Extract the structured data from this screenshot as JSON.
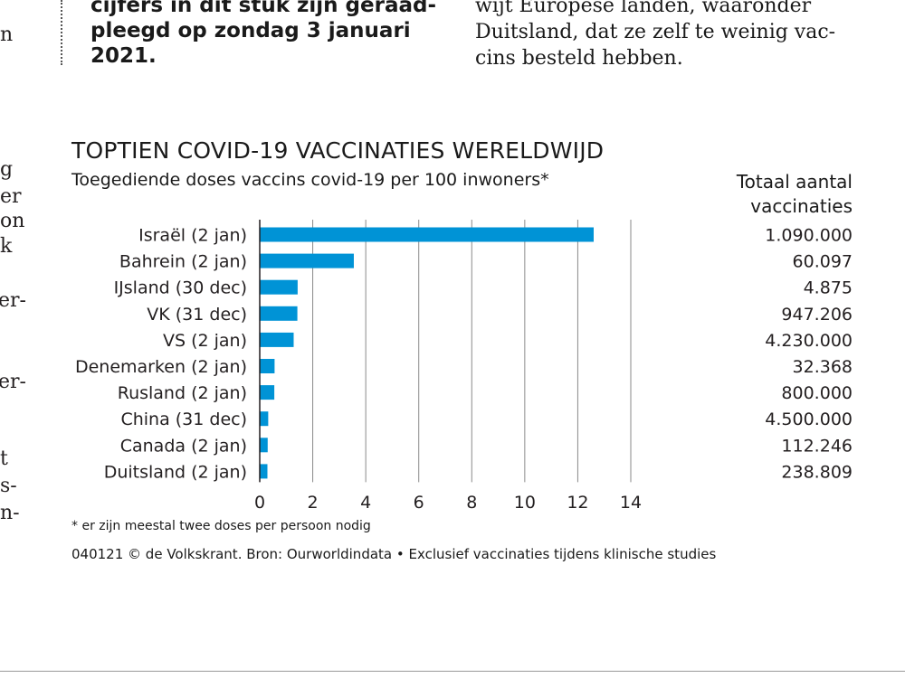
{
  "article": {
    "left_fragments": [
      "n",
      "g",
      "er",
      "on",
      "k",
      "er-",
      "er-",
      "t",
      "s-",
      "n-"
    ],
    "bold_lines": [
      "cijfers in dit stuk zijn geraad-",
      "pleegd op zondag 3 januari",
      "2021."
    ],
    "right_lines": [
      "wijt Europese landen, waaronder",
      "Duitsland, dat ze zelf te weinig vac-",
      "cins besteld hebben."
    ]
  },
  "chart": {
    "title": "TOPTIEN COVID-19 VACCINATIES WERELDWIJD",
    "subtitle": "Toegediende doses vaccins covid-19 per 100 inwoners*",
    "column_header_line1": "Totaal aantal",
    "column_header_line2": "vaccinaties",
    "footnote": "* er zijn meestal twee doses per persoon nodig",
    "source": "040121 © de Volkskrant. Bron: Ourworldindata • Exclusief vaccinaties tijdens klinische studies",
    "bar_color": "#0093d6"
  },
  "chart_data": {
    "type": "bar",
    "orientation": "horizontal",
    "title": "TOPTIEN COVID-19 VACCINATIES WERELDWIJD",
    "subtitle": "Toegediende doses vaccins covid-19 per 100 inwoners*",
    "categories": [
      "Israël (2 jan)",
      "Bahrein (2 jan)",
      "IJsland (30 dec)",
      "VK (31 dec)",
      "VS (2 jan)",
      "Denemarken (2 jan)",
      "Rusland (2 jan)",
      "China (31 dec)",
      "Canada (2 jan)",
      "Duitsland (2 jan)"
    ],
    "values": [
      12.6,
      3.55,
      1.43,
      1.42,
      1.28,
      0.56,
      0.55,
      0.32,
      0.3,
      0.29
    ],
    "totals": [
      "1.090.000",
      "60.097",
      "4.875",
      "947.206",
      "4.230.000",
      "32.368",
      "800.000",
      "4.500.000",
      "112.246",
      "238.809"
    ],
    "xlim": [
      0,
      14
    ],
    "xticks": [
      0,
      2,
      4,
      6,
      8,
      10,
      12,
      14
    ],
    "grid": true,
    "xlabel": "",
    "ylabel": ""
  }
}
